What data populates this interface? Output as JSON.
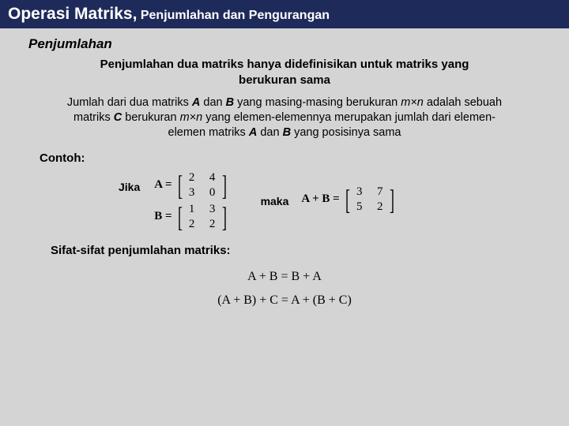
{
  "header": {
    "main": "Operasi Matriks,",
    "sub": "Penjumlahan dan Pengurangan"
  },
  "section_title": "Penjumlahan",
  "definition": "Penjumlahan dua matriks hanya didefinisikan untuk matriks yang berukuran sama",
  "description_parts": {
    "p1": "Jumlah dari dua matriks ",
    "A": "A",
    "p2": " dan ",
    "B": "B",
    "p3": " yang masing-masing berukuran ",
    "mn1": "m×n",
    "p4": " adalah sebuah matriks ",
    "C": "C",
    "p5": " berukuran ",
    "mn2": "m×n",
    "p6": " yang elemen-elemennya merupakan jumlah dari elemen-elemen matriks ",
    "A2": "A",
    "p7": " dan ",
    "B2": "B",
    "p8": " yang posisinya sama"
  },
  "example_label": "Contoh:",
  "jika": "Jika",
  "maka": "maka",
  "matrixA": {
    "label": "A =",
    "r1c1": "2",
    "r1c2": "4",
    "r2c1": "3",
    "r2c2": "0"
  },
  "matrixB": {
    "label": "B =",
    "r1c1": "1",
    "r1c2": "3",
    "r2c1": "2",
    "r2c2": "2"
  },
  "result": {
    "label": "A + B =",
    "r1c1": "3",
    "r1c2": "7",
    "r2c1": "5",
    "r2c2": "2"
  },
  "properties_title": "Sifat-sifat penjumlahan matriks:",
  "prop1": "A + B = B + A",
  "prop2": "(A + B) + C = A + (B + C)",
  "colors": {
    "header_bg": "#1e2a5a",
    "page_bg": "#d4d4d4",
    "text": "#000000",
    "header_text": "#ffffff"
  }
}
